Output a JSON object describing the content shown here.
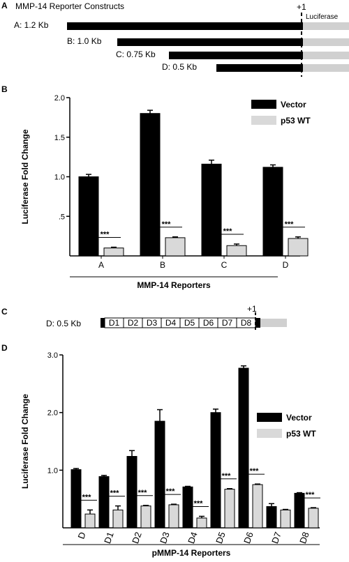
{
  "panel_a": {
    "letter": "A",
    "title": "MMP-14 Reporter Constructs",
    "plus_one": "+1",
    "luciferase": "Luciferase",
    "constructs": [
      {
        "label": "A: 1.2 Kb"
      },
      {
        "label": "B: 1.0 Kb"
      },
      {
        "label": "C: 0.75 Kb"
      },
      {
        "label": "D: 0.5 Kb"
      }
    ]
  },
  "panel_c": {
    "letter": "C",
    "label": "D: 0.5 Kb",
    "plus_one": "+1",
    "segments": [
      "D1",
      "D2",
      "D3",
      "D4",
      "D5",
      "D6",
      "D7",
      "D8"
    ]
  },
  "colors": {
    "vector": "#000000",
    "p53": "#d9d9d9"
  },
  "chart_data": [
    {
      "panel": "B",
      "type": "bar",
      "title": "",
      "xlabel": "MMP-14 Reporters",
      "ylabel": "Luciferase Fold Change",
      "ylim": [
        0,
        2.0
      ],
      "yticks": [
        "2.0",
        "1.5",
        "1.0",
        ".5"
      ],
      "ytick_values": [
        2.0,
        1.5,
        1.0,
        0.5
      ],
      "categories": [
        "A",
        "B",
        "C",
        "D"
      ],
      "series": [
        {
          "name": "Vector",
          "values": [
            1.0,
            1.8,
            1.16,
            1.12
          ],
          "errors": [
            0.03,
            0.04,
            0.05,
            0.03
          ]
        },
        {
          "name": "p53 WT",
          "values": [
            0.1,
            0.23,
            0.13,
            0.22
          ],
          "errors": [
            0.01,
            0.01,
            0.02,
            0.02
          ]
        }
      ],
      "significance": [
        "***",
        "***",
        "***",
        "***"
      ],
      "legend": "top-right",
      "grid": false
    },
    {
      "panel": "D",
      "type": "bar",
      "title": "",
      "xlabel": "pMMP-14 Reporters",
      "ylabel": "Luciferase Fold Change",
      "ylim": [
        0,
        3.0
      ],
      "yticks": [
        "3.0",
        "2.0",
        "1.0"
      ],
      "ytick_values": [
        3.0,
        2.0,
        1.0
      ],
      "categories": [
        "D",
        "D1",
        "D2",
        "D3",
        "D4",
        "D5",
        "D6",
        "D7",
        "D8"
      ],
      "series": [
        {
          "name": "Vector",
          "values": [
            1.01,
            0.89,
            1.24,
            1.85,
            0.71,
            2.0,
            2.77,
            0.37,
            0.6
          ],
          "errors": [
            0.02,
            0.02,
            0.1,
            0.2,
            0.01,
            0.06,
            0.04,
            0.05,
            0.01
          ]
        },
        {
          "name": "p53 WT",
          "values": [
            0.24,
            0.31,
            0.38,
            0.4,
            0.17,
            0.67,
            0.75,
            0.31,
            0.34
          ],
          "errors": [
            0.07,
            0.07,
            0.01,
            0.01,
            0.03,
            0.01,
            0.01,
            0.01,
            0.01
          ]
        }
      ],
      "significance": [
        "***",
        "***",
        "***",
        "***",
        "***",
        "***",
        "***",
        "",
        "***"
      ],
      "legend": "right",
      "grid": false
    }
  ]
}
